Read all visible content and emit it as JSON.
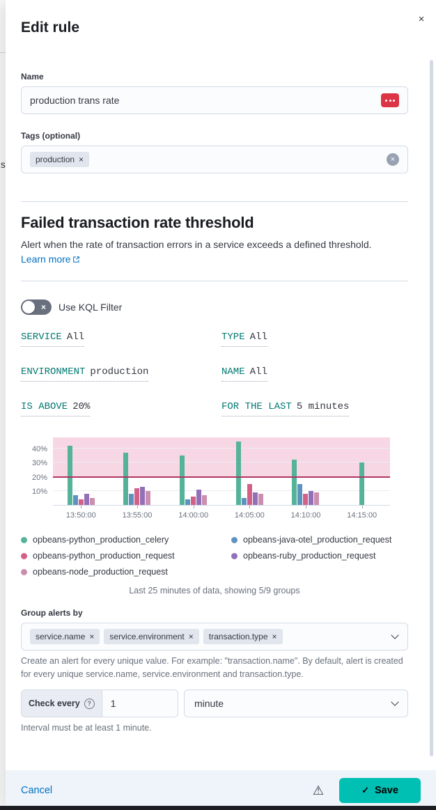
{
  "page_behind": {
    "snippet": "s"
  },
  "flyout": {
    "title": "Edit rule",
    "close_glyph": "×"
  },
  "form": {
    "name_label": "Name",
    "name_value": "production trans rate",
    "tags_label": "Tags (optional)",
    "tag_pills": [
      "production"
    ],
    "pill_remove_glyph": "×",
    "clear_glyph": "×"
  },
  "rule_type": {
    "title": "Failed transaction rate threshold",
    "description": "Alert when the rate of transaction errors in a service exceeds a defined threshold.",
    "learn_more_label": "Learn more"
  },
  "kql_switch": {
    "label": "Use KQL Filter",
    "off_glyph": "×"
  },
  "expressions": [
    {
      "description": "SERVICE",
      "value": "All"
    },
    {
      "description": "TYPE",
      "value": "All"
    },
    {
      "description": "ENVIRONMENT",
      "value": "production"
    },
    {
      "description": "NAME",
      "value": "All"
    },
    {
      "description": "IS ABOVE",
      "value": "20%"
    },
    {
      "description": "FOR THE LAST",
      "value": "5 minutes"
    }
  ],
  "chart_data": {
    "type": "bar",
    "x_ticks": [
      "13:50:00",
      "13:55:00",
      "14:00:00",
      "14:05:00",
      "14:10:00",
      "14:15:00"
    ],
    "y_ticks": [
      "10%",
      "20%",
      "30%",
      "40%"
    ],
    "ylim": [
      0,
      48
    ],
    "grid": true,
    "legend_position": "bottom",
    "threshold": 20,
    "threshold_band_color": "rgba(223, 73, 136, 0.22)",
    "threshold_line_color": "#b0345f",
    "series": [
      {
        "name": "opbeans-python_production_celery",
        "color": "#54b399",
        "values": [
          42,
          37,
          35,
          45,
          32,
          30
        ]
      },
      {
        "name": "opbeans-java-otel_production_request",
        "color": "#6092c0",
        "values": [
          7,
          8,
          4,
          5,
          15,
          0
        ]
      },
      {
        "name": "opbeans-python_production_request",
        "color": "#d36086",
        "values": [
          4,
          12,
          6,
          15,
          8,
          0
        ]
      },
      {
        "name": "opbeans-ruby_production_request",
        "color": "#9170b8",
        "values": [
          8,
          13,
          11,
          9,
          10,
          0
        ]
      },
      {
        "name": "opbeans-node_production_request",
        "color": "#ca8eae",
        "values": [
          5,
          10,
          7,
          8,
          9,
          0
        ]
      }
    ],
    "caption": "Last 25 minutes of data, showing 5/9 groups"
  },
  "group_by": {
    "label": "Group alerts by",
    "pills": [
      "service.name",
      "service.environment",
      "transaction.type"
    ],
    "help": "Create an alert for every unique value. For example: \"transaction.name\". By default, alert is created for every unique service.name, service.environment and transaction.type."
  },
  "interval": {
    "prepend_label": "Check every",
    "question_glyph": "?",
    "value": "1",
    "unit_value": "minute",
    "help": "Interval must be at least 1 minute."
  },
  "footer": {
    "cancel_label": "Cancel",
    "warning_glyph": "⚠",
    "check_glyph": "✓",
    "save_label": "Save"
  },
  "colors": {
    "link": "#0071c2",
    "save_button": "#00bfb3",
    "expression_text": "#007871",
    "footer_background": "#eef4fa"
  }
}
